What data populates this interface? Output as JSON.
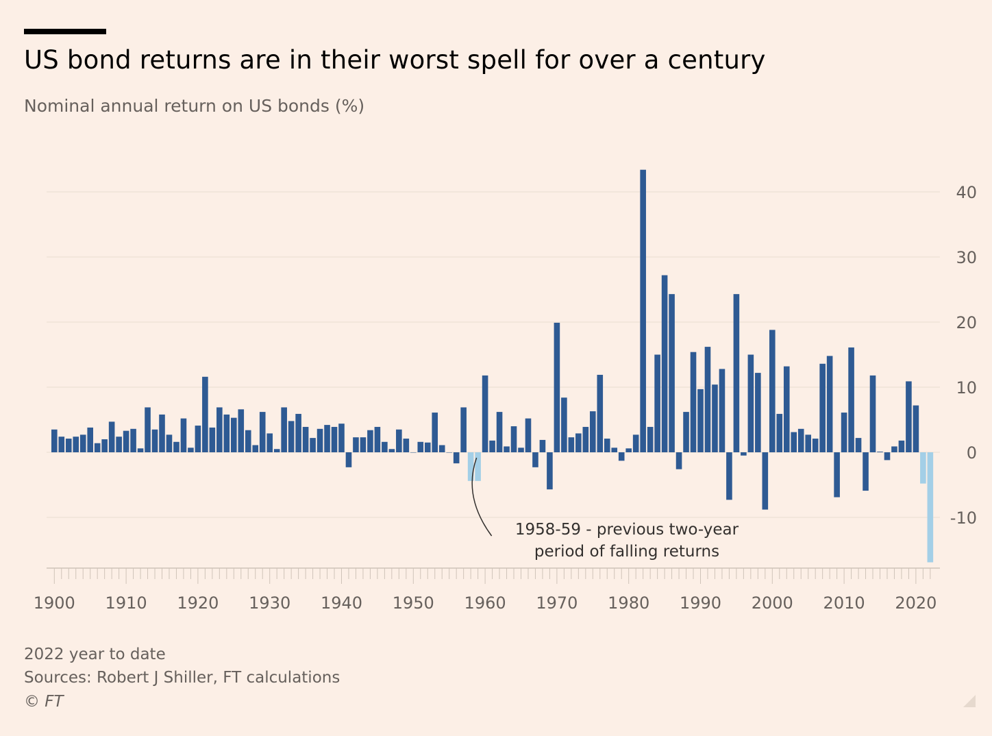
{
  "header": {
    "title": "US bond returns are in their worst spell for over a century",
    "subtitle": "Nominal annual return on US bonds (%)"
  },
  "footer": {
    "note": "2022 year to date",
    "sources": "Sources: Robert J Shiller, FT calculations",
    "copyright": "© FT"
  },
  "colors": {
    "background": "#fcefe6",
    "bar_dark": "#2e5a93",
    "bar_light": "#a3cfe7",
    "grid": "#efe3d7",
    "axis_text": "#66605c"
  },
  "chart_data": {
    "type": "bar",
    "x_start": 1900,
    "x_end": 2022,
    "values": [
      3.5,
      2.4,
      2.1,
      2.4,
      2.7,
      3.8,
      1.4,
      2.0,
      4.7,
      2.4,
      3.3,
      3.6,
      0.6,
      6.9,
      3.5,
      5.8,
      2.7,
      1.6,
      5.2,
      0.7,
      4.1,
      11.6,
      3.8,
      6.9,
      5.8,
      5.3,
      6.6,
      3.4,
      1.1,
      6.2,
      2.9,
      0.5,
      6.9,
      4.8,
      5.9,
      3.9,
      2.2,
      3.6,
      4.2,
      3.9,
      4.4,
      -2.3,
      2.3,
      2.3,
      3.4,
      3.9,
      1.6,
      0.5,
      3.5,
      2.1,
      0.0,
      1.6,
      1.5,
      6.1,
      1.1,
      0.0,
      -1.7,
      6.9,
      -4.4,
      -4.4,
      11.8,
      1.8,
      6.2,
      0.9,
      4.0,
      0.7,
      5.2,
      -2.3,
      1.9,
      -5.7,
      19.9,
      8.4,
      2.3,
      2.9,
      3.9,
      6.3,
      11.9,
      2.1,
      0.7,
      -1.3,
      0.6,
      2.7,
      43.4,
      3.9,
      15.0,
      27.2,
      24.3,
      -2.6,
      6.2,
      15.4,
      9.7,
      16.2,
      10.4,
      12.8,
      -7.3,
      24.3,
      -0.5,
      15.0,
      12.2,
      -8.8,
      18.8,
      5.9,
      13.2,
      3.1,
      3.6,
      2.7,
      2.1,
      13.6,
      14.8,
      -6.9,
      6.1,
      16.1,
      2.2,
      -5.9,
      11.8,
      0.1,
      -1.2,
      0.9,
      1.8,
      10.9,
      7.2,
      -4.8,
      -16.9
    ],
    "highlight_years": [
      1958,
      1959,
      2021,
      2022
    ],
    "x_ticks": [
      "1900",
      "1910",
      "1920",
      "1930",
      "1940",
      "1950",
      "1960",
      "1970",
      "1980",
      "1990",
      "2000",
      "2010",
      "2020"
    ],
    "y_ticks": [
      "40",
      "30",
      "20",
      "10",
      "0",
      "-10"
    ],
    "ylim": [
      -17,
      43.4
    ],
    "grid": true,
    "annotation": {
      "year": 1959,
      "lines": [
        "1958-59 - previous two-year",
        "period of falling returns"
      ]
    }
  }
}
